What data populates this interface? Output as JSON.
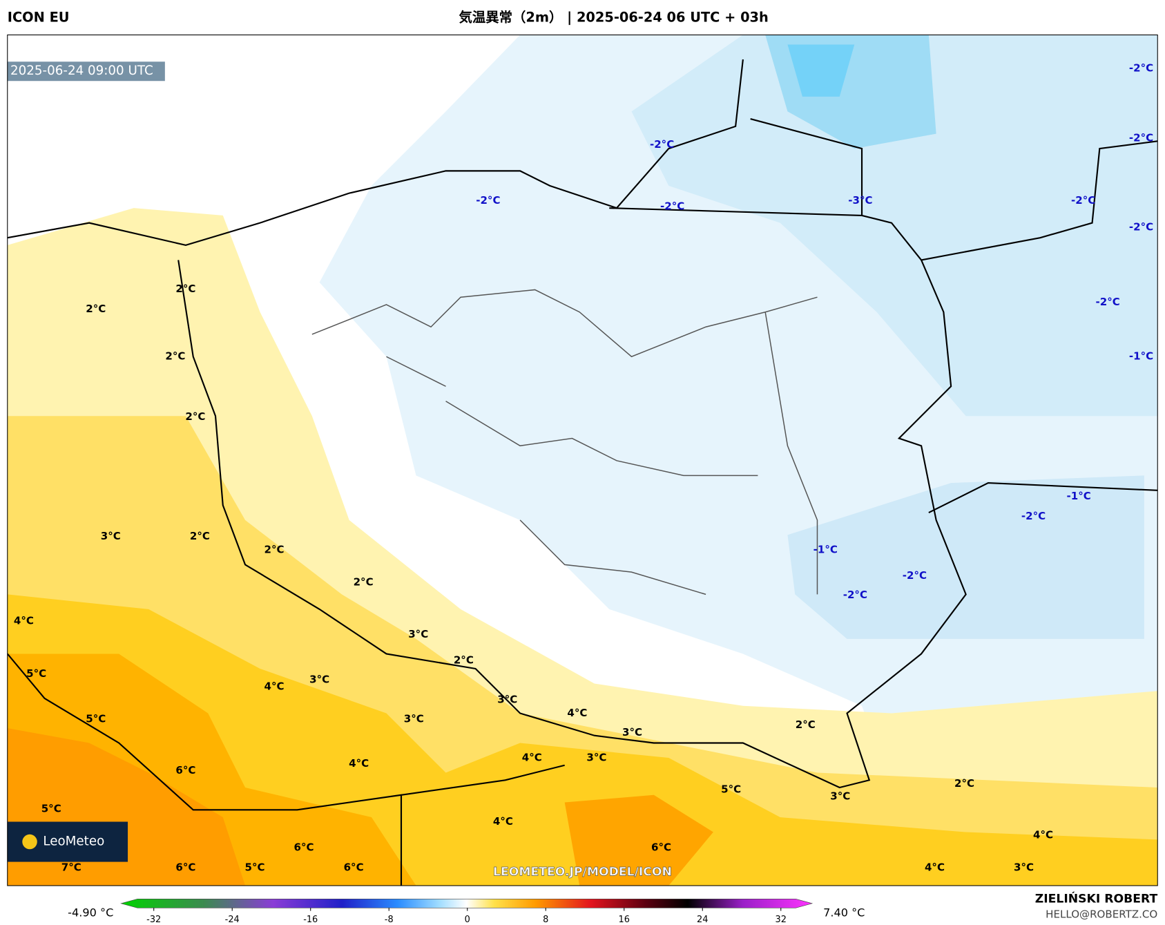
{
  "header": {
    "model": "ICON EU",
    "title": "気温異常（2m） | 2025-06-24 06 UTC + 03h"
  },
  "map": {
    "timestamp": "2025-06-24 09:00 UTC",
    "watermark": "LEOMETEO.JP/MODEL/ICON",
    "logo": "LeoMeteo",
    "labels": [
      "-2°C",
      "-2°C",
      "-2°C",
      "-2°C",
      "-2°C",
      "-3°C",
      "-2°C",
      "-2°C",
      "-2°C",
      "-1°C",
      "-1°C",
      "-2°C",
      "-1°C",
      "-2°C",
      "-2°C",
      "2°C",
      "2°C",
      "2°C",
      "2°C",
      "3°C",
      "2°C",
      "2°C",
      "2°C",
      "4°C",
      "3°C",
      "2°C",
      "5°C",
      "4°C",
      "3°C",
      "3°C",
      "4°C",
      "5°C",
      "3°C",
      "3°C",
      "2°C",
      "4°C",
      "3°C",
      "4°C",
      "6°C",
      "2°C",
      "5°C",
      "3°C",
      "5°C",
      "4°C",
      "4°C",
      "6°C",
      "6°C",
      "7°C",
      "6°C",
      "5°C",
      "6°C",
      "4°C",
      "3°C"
    ]
  },
  "colorbar": {
    "min_label": "-4.90 °C",
    "max_label": "7.40 °C",
    "ticks": [
      -32,
      -24,
      -16,
      -8,
      0,
      8,
      16,
      24,
      32
    ]
  },
  "footer": {
    "author": "ZIELIŃSKI ROBERT",
    "email": "HELLO@ROBERTZ.CO"
  }
}
